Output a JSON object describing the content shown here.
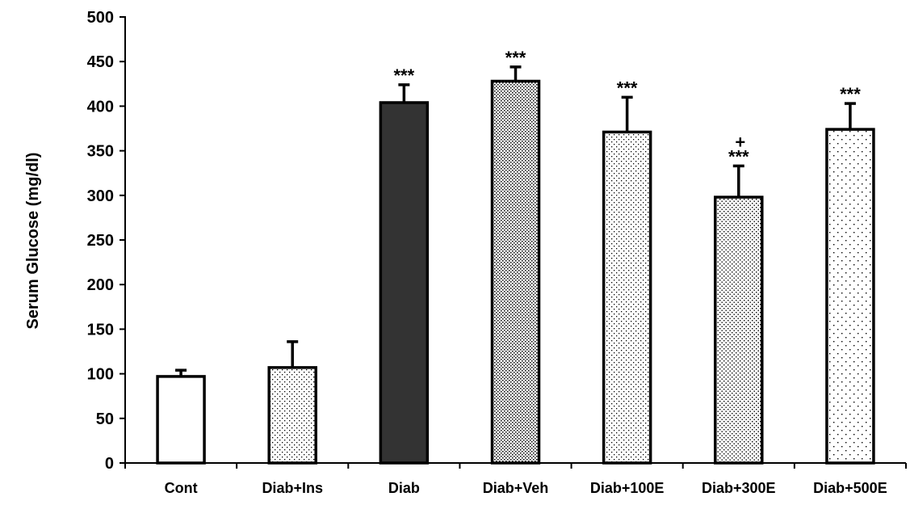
{
  "chart_data": {
    "type": "bar",
    "ylabel": "Serum Glucose (mg/dl)",
    "xlabel": "",
    "ylim": [
      0,
      500
    ],
    "yticks": [
      0,
      50,
      100,
      150,
      200,
      250,
      300,
      350,
      400,
      450,
      500
    ],
    "categories": [
      "Cont",
      "Diab+Ins",
      "Diab",
      "Diab+Veh",
      "Diab+100E",
      "Diab+300E",
      "Diab+500E"
    ],
    "values": [
      97,
      107,
      404,
      428,
      371,
      298,
      374
    ],
    "errors": [
      7,
      29,
      20,
      16,
      39,
      35,
      29
    ],
    "annotations": [
      "",
      "",
      "***",
      "***",
      "***",
      "***",
      "***"
    ],
    "secondary_annotations": [
      "",
      "",
      "",
      "",
      "",
      "+",
      ""
    ],
    "fills": [
      "white",
      "fine-dots",
      "dark",
      "dense-dots",
      "fine-dots",
      "medium-dots",
      "sparse-dots"
    ],
    "colors": {
      "dark_bar": "#333333",
      "outline": "#000000"
    }
  }
}
